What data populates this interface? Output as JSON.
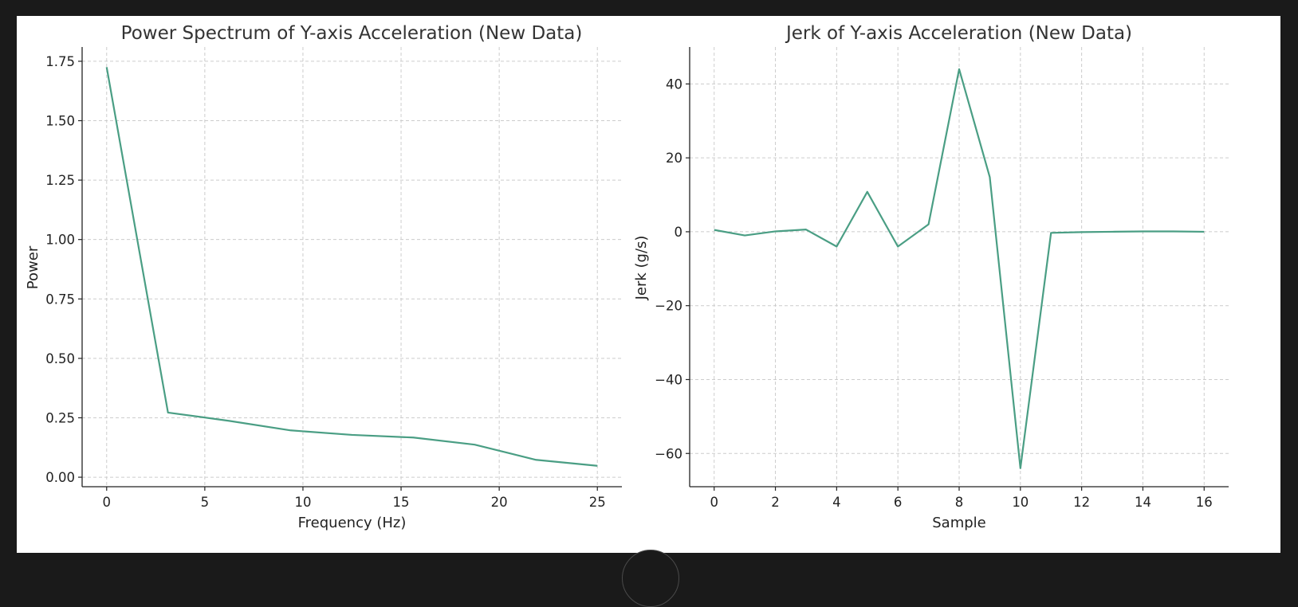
{
  "colors": {
    "line": "#4a9e84",
    "background": "#1a1a1a",
    "panel": "#ffffff"
  },
  "chart_data": [
    {
      "type": "line",
      "title": "Power Spectrum of Y-axis Acceleration (New Data)",
      "xlabel": "Frequency (Hz)",
      "ylabel": "Power",
      "xlim": [
        -1.25,
        26.25
      ],
      "ylim": [
        -0.04,
        1.81
      ],
      "xticks": [
        0,
        5,
        10,
        15,
        20,
        25
      ],
      "xtick_labels": [
        "0",
        "5",
        "10",
        "15",
        "20",
        "25"
      ],
      "yticks": [
        0,
        0.25,
        0.5,
        0.75,
        1.0,
        1.25,
        1.5,
        1.75
      ],
      "ytick_labels": [
        "0.00",
        "0.25",
        "0.50",
        "0.75",
        "1.00",
        "1.25",
        "1.50",
        "1.75"
      ],
      "grid": true,
      "series": [
        {
          "x": [
            0,
            3.125,
            6.25,
            9.375,
            12.5,
            15.625,
            18.75,
            21.875,
            25
          ],
          "values": [
            1.725,
            0.272,
            0.237,
            0.197,
            0.178,
            0.167,
            0.137,
            0.073,
            0.048
          ]
        }
      ]
    },
    {
      "type": "line",
      "title": "Jerk of Y-axis Acceleration (New Data)",
      "xlabel": "Sample",
      "ylabel": "Jerk (g/s)",
      "xlim": [
        -0.8,
        16.8
      ],
      "ylim": [
        -69,
        50
      ],
      "xticks": [
        0,
        2,
        4,
        6,
        8,
        10,
        12,
        14,
        16
      ],
      "xtick_labels": [
        "0",
        "2",
        "4",
        "6",
        "8",
        "10",
        "12",
        "14",
        "16"
      ],
      "yticks": [
        -60,
        -40,
        -20,
        0,
        20,
        40
      ],
      "ytick_labels": [
        "−60",
        "−40",
        "−20",
        "0",
        "20",
        "40"
      ],
      "grid": true,
      "series": [
        {
          "x": [
            0,
            1,
            2,
            3,
            4,
            5,
            6,
            7,
            8,
            9,
            10,
            11,
            12,
            13,
            14,
            15,
            16
          ],
          "values": [
            0.5,
            -1.0,
            0.1,
            0.6,
            -4.0,
            10.8,
            -4.0,
            2.0,
            44.0,
            14.8,
            -64.0,
            -0.3,
            -0.1,
            0.0,
            0.1,
            0.1,
            0.0
          ]
        }
      ]
    }
  ]
}
